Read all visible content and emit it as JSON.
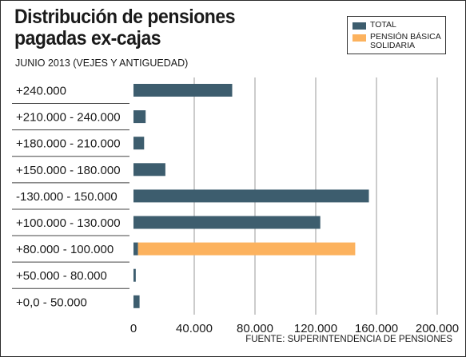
{
  "header": {
    "title_line1": "Distribución de pensiones",
    "title_line2": "pagadas ex-cajas",
    "subtitle": "JUNIO 2013 (VEJES Y ANTIGUEDAD)"
  },
  "legend": {
    "total_label": "TOTAL",
    "pbs_label": "PENSIÓN BÁSICA SOLIDARIA"
  },
  "footer": {
    "source": "FUENTE: SUPERINTENDENCIA DE PENSIONES"
  },
  "colors": {
    "total": "#3d5d6e",
    "pbs": "#fcb25e",
    "grid": "#9a9a9a",
    "divider": "#444444"
  },
  "chart_data": {
    "type": "bar",
    "orientation": "horizontal",
    "categories": [
      "+240.000",
      "+210.000 - 240.000",
      "+180.000 - 210.000",
      "+150.000 - 180.000",
      "-130.000 - 150.000",
      "+100.000 - 130.000",
      "+80.000 - 100.000",
      "+50.000 - 80.000",
      "+0,0 - 50.000"
    ],
    "series": [
      {
        "name": "TOTAL",
        "values": [
          65000,
          8000,
          7000,
          21000,
          155000,
          123000,
          3000,
          1500,
          4000
        ]
      },
      {
        "name": "PENSIÓN BÁSICA SOLIDARIA",
        "values": [
          0,
          0,
          0,
          0,
          0,
          0,
          143000,
          0,
          0
        ]
      }
    ],
    "stacked": true,
    "xlim": [
      0,
      200000
    ],
    "xticks": [
      0,
      40000,
      80000,
      120000,
      160000,
      200000
    ],
    "xtick_labels": [
      "0",
      "40.000",
      "80.000",
      "120.000",
      "160.000",
      "200.000"
    ],
    "grid": true,
    "legend_position": "top-right"
  }
}
